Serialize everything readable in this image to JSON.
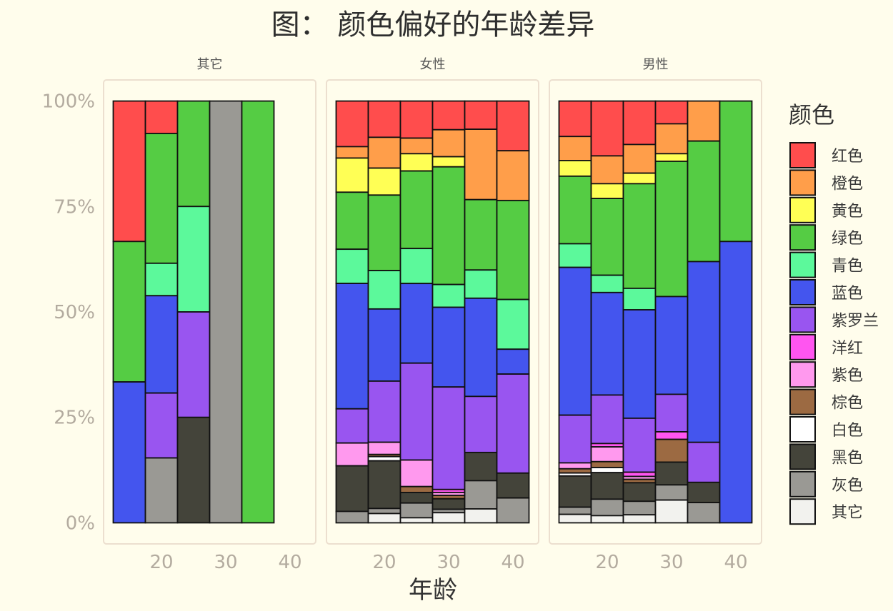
{
  "chart_data": {
    "type": "bar",
    "stacked": "percent",
    "title": "图： 颜色偏好的年龄差异",
    "xlabel": "年龄",
    "xlim": [
      11,
      44
    ],
    "ylim": [
      -5,
      105
    ],
    "x_ticks": [
      20,
      30,
      40
    ],
    "y_ticks": [
      0,
      25,
      50,
      75,
      100
    ],
    "y_tick_labels": [
      "0%",
      "25%",
      "50%",
      "75%",
      "100%"
    ],
    "grid": false,
    "legend_title": "颜色",
    "legend_position": "right",
    "series": [
      {
        "name": "红色",
        "color": "#ff4d4d"
      },
      {
        "name": "橙色",
        "color": "#ff9e4a"
      },
      {
        "name": "黄色",
        "color": "#ffff55"
      },
      {
        "name": "绿色",
        "color": "#55cc44"
      },
      {
        "name": "青色",
        "color": "#5cf99b"
      },
      {
        "name": "蓝色",
        "color": "#4455ee"
      },
      {
        "name": "紫罗兰",
        "color": "#9955f0"
      },
      {
        "name": "洋红",
        "color": "#ff55f0"
      },
      {
        "name": "紫色",
        "color": "#ff99ee"
      },
      {
        "name": "棕色",
        "color": "#9c6a42"
      },
      {
        "name": "白色",
        "color": "#ffffff"
      },
      {
        "name": "黑色",
        "color": "#44443a"
      },
      {
        "name": "灰色",
        "color": "#9a9994"
      },
      {
        "name": "其它",
        "color": "#f2f2ee"
      }
    ],
    "facets": [
      {
        "label": "其它",
        "bars": [
          {
            "x": 15,
            "shares": [
              33.3,
              0,
              0,
              33.3,
              0,
              33.4,
              0,
              0,
              0,
              0,
              0,
              0,
              0,
              0
            ]
          },
          {
            "x": 20,
            "shares": [
              7.7,
              0,
              0,
              30.8,
              7.7,
              23.1,
              15.4,
              0,
              0,
              0,
              0,
              0,
              15.4,
              0
            ]
          },
          {
            "x": 25,
            "shares": [
              0,
              0,
              0,
              25,
              25,
              0,
              25,
              0,
              0,
              0,
              0,
              25,
              0,
              0
            ]
          },
          {
            "x": 30,
            "shares": [
              0,
              0,
              0,
              0,
              0,
              0,
              0,
              0,
              0,
              0,
              0,
              0,
              100,
              0
            ]
          },
          {
            "x": 35,
            "shares": [
              0,
              0,
              0,
              100,
              0,
              0,
              0,
              0,
              0,
              0,
              0,
              0,
              0,
              0
            ]
          }
        ]
      },
      {
        "label": "女性",
        "bars": [
          {
            "x": 15,
            "shares": [
              10.8,
              2.7,
              8.1,
              13.5,
              8.1,
              29.7,
              8.1,
              0,
              5.4,
              0,
              0,
              10.8,
              2.7,
              0
            ]
          },
          {
            "x": 20,
            "shares": [
              8.6,
              7.3,
              6.4,
              17.9,
              9.1,
              17.1,
              14.5,
              0,
              2.9,
              0.5,
              1.0,
              11.3,
              1.2,
              2.2
            ]
          },
          {
            "x": 25,
            "shares": [
              8.8,
              3.7,
              4.1,
              18.4,
              8.3,
              18.9,
              23.0,
              0,
              6.3,
              1.4,
              0,
              2.5,
              3.5,
              1.2
            ]
          },
          {
            "x": 30,
            "shares": [
              6.8,
              6.4,
              2.4,
              27.9,
              5.4,
              18.9,
              24.3,
              0.7,
              0.7,
              0.8,
              0,
              2.5,
              0.8,
              2.4
            ]
          },
          {
            "x": 35,
            "shares": [
              6.7,
              16.7,
              0,
              16.7,
              6.7,
              23.3,
              13.3,
              0,
              0,
              0,
              0,
              6.7,
              6.7,
              3.3
            ]
          },
          {
            "x": 40,
            "shares": [
              11.8,
              11.8,
              0,
              23.5,
              11.8,
              5.9,
              23.5,
              0,
              0,
              0,
              0,
              5.9,
              5.9,
              0
            ]
          }
        ]
      },
      {
        "label": "男性",
        "bars": [
          {
            "x": 15,
            "shares": [
              8.4,
              5.7,
              3.7,
              16.0,
              5.6,
              35.0,
              11.3,
              0,
              1.4,
              1.0,
              0.7,
              7.4,
              1.7,
              2.0
            ]
          },
          {
            "x": 20,
            "shares": [
              13.0,
              6.6,
              3.5,
              18.2,
              4.1,
              24.3,
              11.5,
              0.8,
              3.5,
              1.4,
              1.2,
              6.3,
              3.9,
              1.7
            ]
          },
          {
            "x": 25,
            "shares": [
              10.3,
              6.8,
              2.5,
              24.8,
              5.1,
              25.7,
              12.8,
              1.0,
              0.7,
              0.8,
              0,
              4.4,
              3.2,
              1.9
            ]
          },
          {
            "x": 30,
            "shares": [
              5.4,
              7.1,
              1.8,
              32.1,
              0,
              23.2,
              8.9,
              1.8,
              0,
              5.4,
              0,
              5.4,
              3.6,
              5.4
            ]
          },
          {
            "x": 35,
            "shares": [
              0,
              9.5,
              0,
              28.6,
              0,
              42.9,
              9.5,
              0,
              0,
              0,
              0,
              4.8,
              4.8,
              0
            ]
          },
          {
            "x": 40,
            "shares": [
              0,
              0,
              0,
              33.3,
              0,
              66.7,
              0,
              0,
              0,
              0,
              0,
              0,
              0,
              0
            ]
          }
        ]
      }
    ]
  }
}
